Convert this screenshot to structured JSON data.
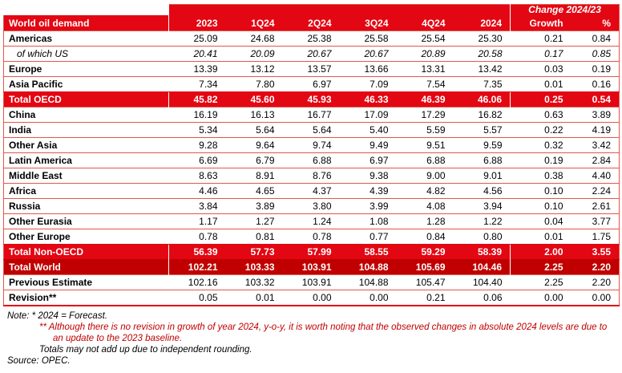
{
  "colors": {
    "header_red": "#E30613",
    "total_world_red": "#C00000",
    "grid_line_red": "#E2574D",
    "note_red": "#C00000"
  },
  "chart_data": {
    "type": "table",
    "title": "World oil demand",
    "change_header": "Change 2024/23",
    "columns": [
      "2023",
      "1Q24",
      "2Q24",
      "3Q24",
      "4Q24",
      "2024",
      "Growth",
      "%"
    ],
    "rows": [
      {
        "label": "Americas",
        "style": "region",
        "values": [
          "25.09",
          "24.68",
          "25.38",
          "25.58",
          "25.54",
          "25.30",
          "0.21",
          "0.84"
        ]
      },
      {
        "label": "of which US",
        "style": "sub",
        "values": [
          "20.41",
          "20.09",
          "20.67",
          "20.67",
          "20.89",
          "20.58",
          "0.17",
          "0.85"
        ]
      },
      {
        "label": "Europe",
        "style": "region",
        "values": [
          "13.39",
          "13.12",
          "13.57",
          "13.66",
          "13.31",
          "13.42",
          "0.03",
          "0.19"
        ]
      },
      {
        "label": "Asia Pacific",
        "style": "region",
        "values": [
          "7.34",
          "7.80",
          "6.97",
          "7.09",
          "7.54",
          "7.35",
          "0.01",
          "0.16"
        ]
      },
      {
        "label": "Total OECD",
        "style": "total",
        "values": [
          "45.82",
          "45.60",
          "45.93",
          "46.33",
          "46.39",
          "46.06",
          "0.25",
          "0.54"
        ]
      },
      {
        "label": "China",
        "style": "region",
        "values": [
          "16.19",
          "16.13",
          "16.77",
          "17.09",
          "17.29",
          "16.82",
          "0.63",
          "3.89"
        ]
      },
      {
        "label": "India",
        "style": "region",
        "values": [
          "5.34",
          "5.64",
          "5.64",
          "5.40",
          "5.59",
          "5.57",
          "0.22",
          "4.19"
        ]
      },
      {
        "label": "Other Asia",
        "style": "region",
        "values": [
          "9.28",
          "9.64",
          "9.74",
          "9.49",
          "9.51",
          "9.59",
          "0.32",
          "3.42"
        ]
      },
      {
        "label": "Latin America",
        "style": "region",
        "values": [
          "6.69",
          "6.79",
          "6.88",
          "6.97",
          "6.88",
          "6.88",
          "0.19",
          "2.84"
        ]
      },
      {
        "label": "Middle East",
        "style": "region",
        "values": [
          "8.63",
          "8.91",
          "8.76",
          "9.38",
          "9.00",
          "9.01",
          "0.38",
          "4.40"
        ]
      },
      {
        "label": "Africa",
        "style": "region",
        "values": [
          "4.46",
          "4.65",
          "4.37",
          "4.39",
          "4.82",
          "4.56",
          "0.10",
          "2.24"
        ]
      },
      {
        "label": "Russia",
        "style": "region",
        "values": [
          "3.84",
          "3.89",
          "3.80",
          "3.99",
          "4.08",
          "3.94",
          "0.10",
          "2.61"
        ]
      },
      {
        "label": "Other Eurasia",
        "style": "region",
        "values": [
          "1.17",
          "1.27",
          "1.24",
          "1.08",
          "1.28",
          "1.22",
          "0.04",
          "3.77"
        ]
      },
      {
        "label": "Other Europe",
        "style": "region",
        "values": [
          "0.78",
          "0.81",
          "0.78",
          "0.77",
          "0.84",
          "0.80",
          "0.01",
          "1.75"
        ]
      },
      {
        "label": "Total Non-OECD",
        "style": "total",
        "values": [
          "56.39",
          "57.73",
          "57.99",
          "58.55",
          "59.29",
          "58.39",
          "2.00",
          "3.55"
        ]
      },
      {
        "label": "Total World",
        "style": "grand",
        "values": [
          "102.21",
          "103.33",
          "103.91",
          "104.88",
          "105.69",
          "104.46",
          "2.25",
          "2.20"
        ]
      },
      {
        "label": "Previous Estimate",
        "style": "region",
        "values": [
          "102.16",
          "103.32",
          "103.91",
          "104.88",
          "105.47",
          "104.40",
          "2.25",
          "2.20"
        ]
      },
      {
        "label": "Revision**",
        "style": "region",
        "values": [
          "0.05",
          "0.01",
          "0.00",
          "0.00",
          "0.21",
          "0.06",
          "0.00",
          "0.00"
        ]
      }
    ]
  },
  "notes": {
    "forecast": "Note: * 2024 = Forecast.",
    "revision": "** Although there is no revision in growth of year 2024, y-o-y, it is worth noting that the observed changes in absolute 2024 levels are due to an update to the 2023 baseline.",
    "rounding": "Totals may not add up due to independent rounding.",
    "source": "Source: OPEC."
  }
}
